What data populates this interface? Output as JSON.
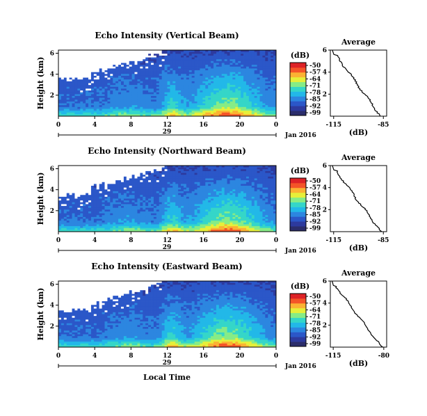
{
  "chart_data": [
    {
      "type": "heatmap",
      "title": "Echo Intensity (Vertical Beam)",
      "ylabel": "Height (km)",
      "y_ticks": [
        "6",
        "4",
        "2"
      ],
      "x_ticks": [
        "0",
        "4",
        "8",
        "12",
        "16",
        "20",
        "0"
      ],
      "date_day": "29",
      "date_month": "Jan 2016",
      "colorbar": {
        "label": "(dB)",
        "ticks": [
          "-50",
          "-57",
          "-64",
          "-71",
          "-78",
          "-85",
          "-92",
          "-99"
        ]
      },
      "profile": {
        "title": "Average",
        "xlabel": "(dB)",
        "x_ticks": [
          "-115",
          "-85"
        ],
        "y_ticks": [
          "6",
          "4",
          "2"
        ],
        "xlim": [
          -117,
          -83
        ],
        "ylim": [
          0,
          6
        ],
        "x_end": -86.5
      }
    },
    {
      "type": "heatmap",
      "title": "Echo Intensity (Northward Beam)",
      "ylabel": "Height (km)",
      "y_ticks": [
        "6",
        "4",
        "2"
      ],
      "x_ticks": [
        "0",
        "4",
        "8",
        "12",
        "16",
        "20",
        "0"
      ],
      "date_day": "29",
      "date_month": "Jan 2016",
      "colorbar": {
        "label": "(dB)",
        "ticks": [
          "-50",
          "-57",
          "-64",
          "-71",
          "-78",
          "-85",
          "-92",
          "-99"
        ]
      },
      "profile": {
        "title": "Average",
        "xlabel": "(dB)",
        "x_ticks": [
          "-115",
          "-85"
        ],
        "y_ticks": [
          "6",
          "4",
          "2"
        ],
        "xlim": [
          -117,
          -83
        ],
        "ylim": [
          0,
          6
        ],
        "x_end": -86.5
      }
    },
    {
      "type": "heatmap",
      "title": "Echo Intensity (Eastward Beam)",
      "ylabel": "Height (km)",
      "y_ticks": [
        "6",
        "4",
        "2"
      ],
      "x_ticks": [
        "0",
        "4",
        "8",
        "12",
        "16",
        "20",
        "0"
      ],
      "date_day": "29",
      "date_month": "Jan 2016",
      "xlabel": "Local Time",
      "colorbar": {
        "label": "(dB)",
        "ticks": [
          "-50",
          "-57",
          "-64",
          "-71",
          "-78",
          "-85",
          "-92",
          "-99"
        ]
      },
      "profile": {
        "title": "Average",
        "xlabel": "(dB)",
        "x_ticks": [
          "-115",
          "-80"
        ],
        "y_ticks": [
          "6",
          "4",
          "2"
        ],
        "xlim": [
          -117,
          -78
        ],
        "ylim": [
          0,
          6
        ],
        "x_end": -81.5
      }
    }
  ],
  "colors": {
    "scale": [
      "#2b2d6b",
      "#2d3a9e",
      "#2b57c8",
      "#2c86e0",
      "#22b8e8",
      "#35d6c8",
      "#86ec86",
      "#e6ef3a",
      "#fbb233",
      "#f45428",
      "#dd2226"
    ],
    "no_data": "#ffffff"
  }
}
